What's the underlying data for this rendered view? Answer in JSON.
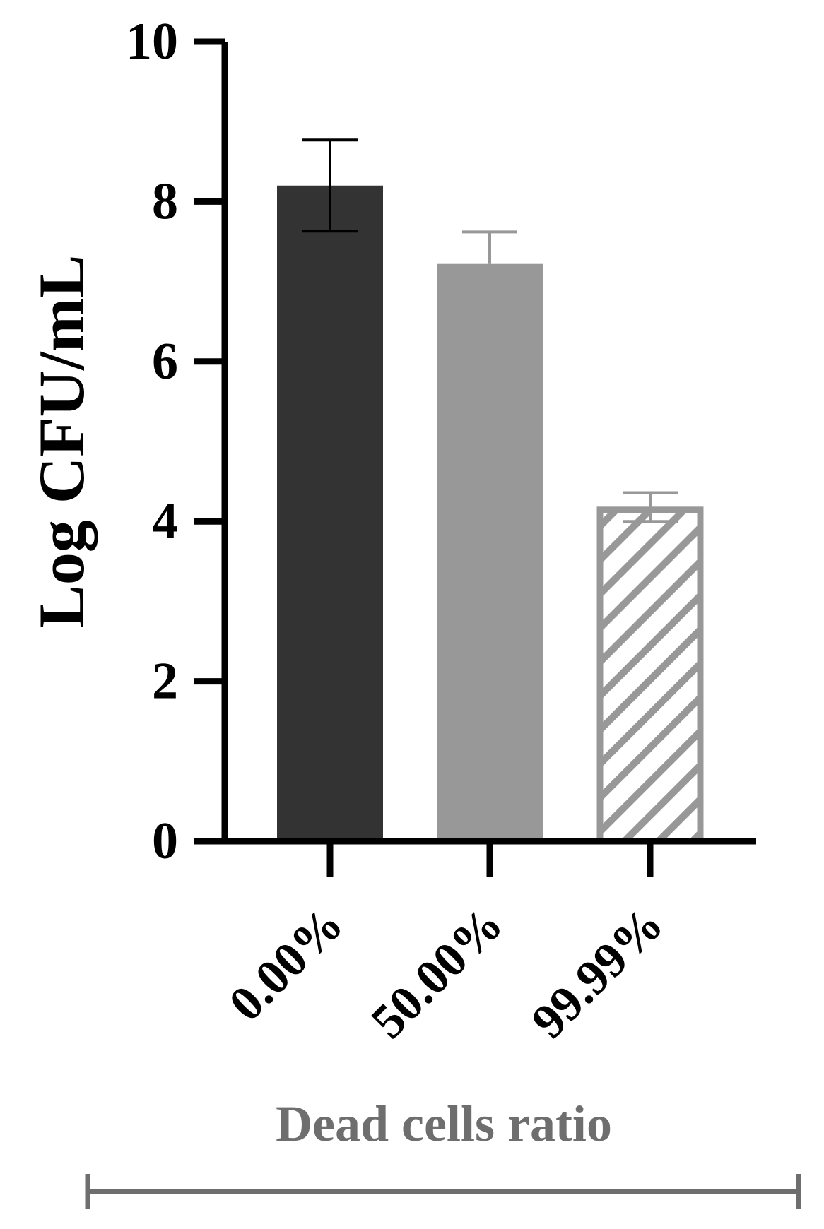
{
  "chart_data": {
    "type": "bar",
    "title": "",
    "xlabel": "Dead cells ratio",
    "ylabel": "Log CFU/mL",
    "categories": [
      "0.00%",
      "50.00%",
      "99.99%"
    ],
    "values": [
      8.2,
      7.22,
      4.18
    ],
    "error_upper": [
      0.57,
      0.4,
      0.18
    ],
    "error_lower": [
      0.57,
      0.0,
      0.18
    ],
    "ylim": [
      0,
      10
    ],
    "yticks": [
      0,
      2,
      4,
      6,
      8,
      10
    ],
    "ytick_labels": [
      "0",
      "2",
      "4",
      "6",
      "8",
      "10"
    ],
    "bar_styles": [
      "solid",
      "solid",
      "hatched"
    ],
    "colors": {
      "bar_0": "#333333",
      "bar_1": "#989898",
      "bar_2": "#989898",
      "axis": "#000000",
      "xlabel": "#6e6e6e",
      "bracket": "#6e6e6e",
      "error_0": "#000000",
      "error_1": "#989898",
      "error_2": "#989898"
    },
    "grid": false,
    "legend": "none"
  }
}
